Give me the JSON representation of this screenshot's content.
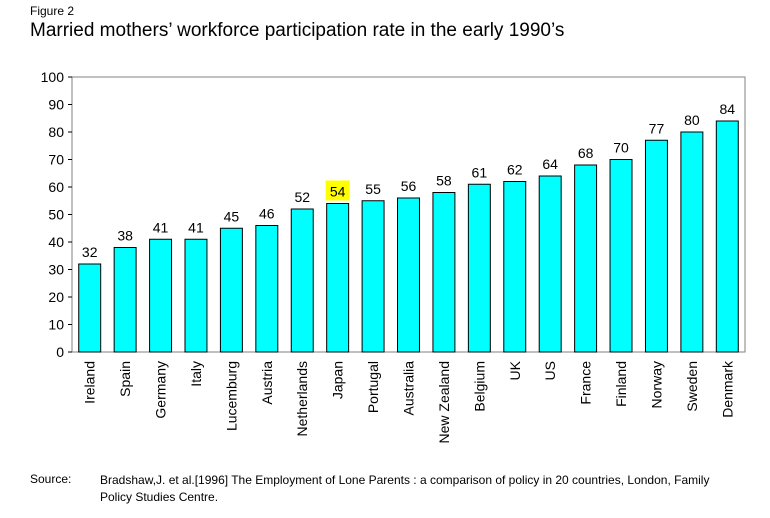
{
  "figure_label": "Figure 2",
  "title": "Married mothers’ workforce participation rate in the early 1990’s",
  "source_label": "Source:",
  "source_text": "Bradshaw,J. et al.[1996] The Employment of Lone Parents : a comparison of policy in 20 countries, London, Family Policy Studies Centre.",
  "colors": {
    "bar": "#00FFFF",
    "highlight": "#FFFF00",
    "plot_border": "#808080"
  },
  "chart_data": {
    "type": "bar",
    "title": "Married mothers’ workforce participation rate in the early 1990’s",
    "xlabel": "",
    "ylabel": "",
    "categories": [
      "Ireland",
      "Spain",
      "Germany",
      "Italy",
      "Lucemburg",
      "Austria",
      "Netherlands",
      "Japan",
      "Portugal",
      "Australia",
      "New Zealand",
      "Belgium",
      "UK",
      "US",
      "France",
      "Finland",
      "Norway",
      "Sweden",
      "Denmark"
    ],
    "values": [
      32,
      38,
      41,
      41,
      45,
      46,
      52,
      54,
      55,
      56,
      58,
      61,
      62,
      64,
      68,
      70,
      77,
      80,
      84
    ],
    "highlight_category": "Japan",
    "ylim": [
      0,
      100
    ],
    "yticks": [
      0,
      10,
      20,
      30,
      40,
      50,
      60,
      70,
      80,
      90,
      100
    ],
    "grid": false,
    "legend": "none"
  }
}
